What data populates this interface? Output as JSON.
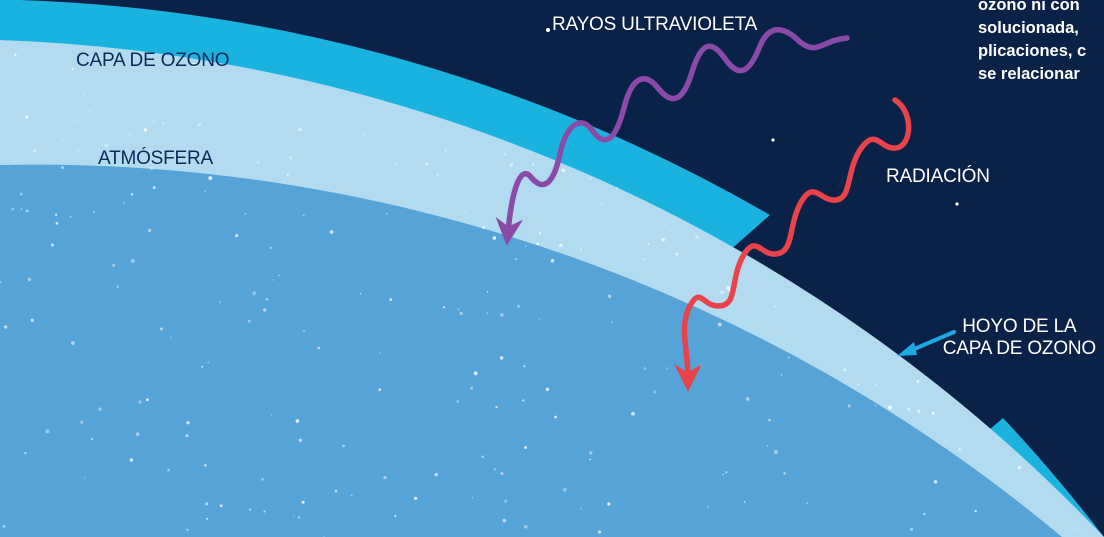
{
  "labels": {
    "ozone_layer": "CAPA DE OZONO",
    "atmosphere": "ATMÓSFERA",
    "uv_rays": "RAYOS ULTRAVIOLETA",
    "radiation": "RADIACIÓN",
    "hole_line1": "HOYO DE LA",
    "hole_line2": "CAPA DE OZONO"
  },
  "note": {
    "lines": [
      "ozono ni con",
      "solucionada,",
      "plicaciones, c",
      "se relacionar"
    ]
  },
  "colors": {
    "space": "#0a2148",
    "ozone": "#1ab3e0",
    "atmosphere": "#b3dbf0",
    "earth": "#56a3d8",
    "uv_arrow": "#8a4ba8",
    "radiation_arrow": "#e8434b",
    "hole_arrow": "#1fa9e1",
    "label_dark": "#0a2a57",
    "label_light": "#ffffff"
  }
}
